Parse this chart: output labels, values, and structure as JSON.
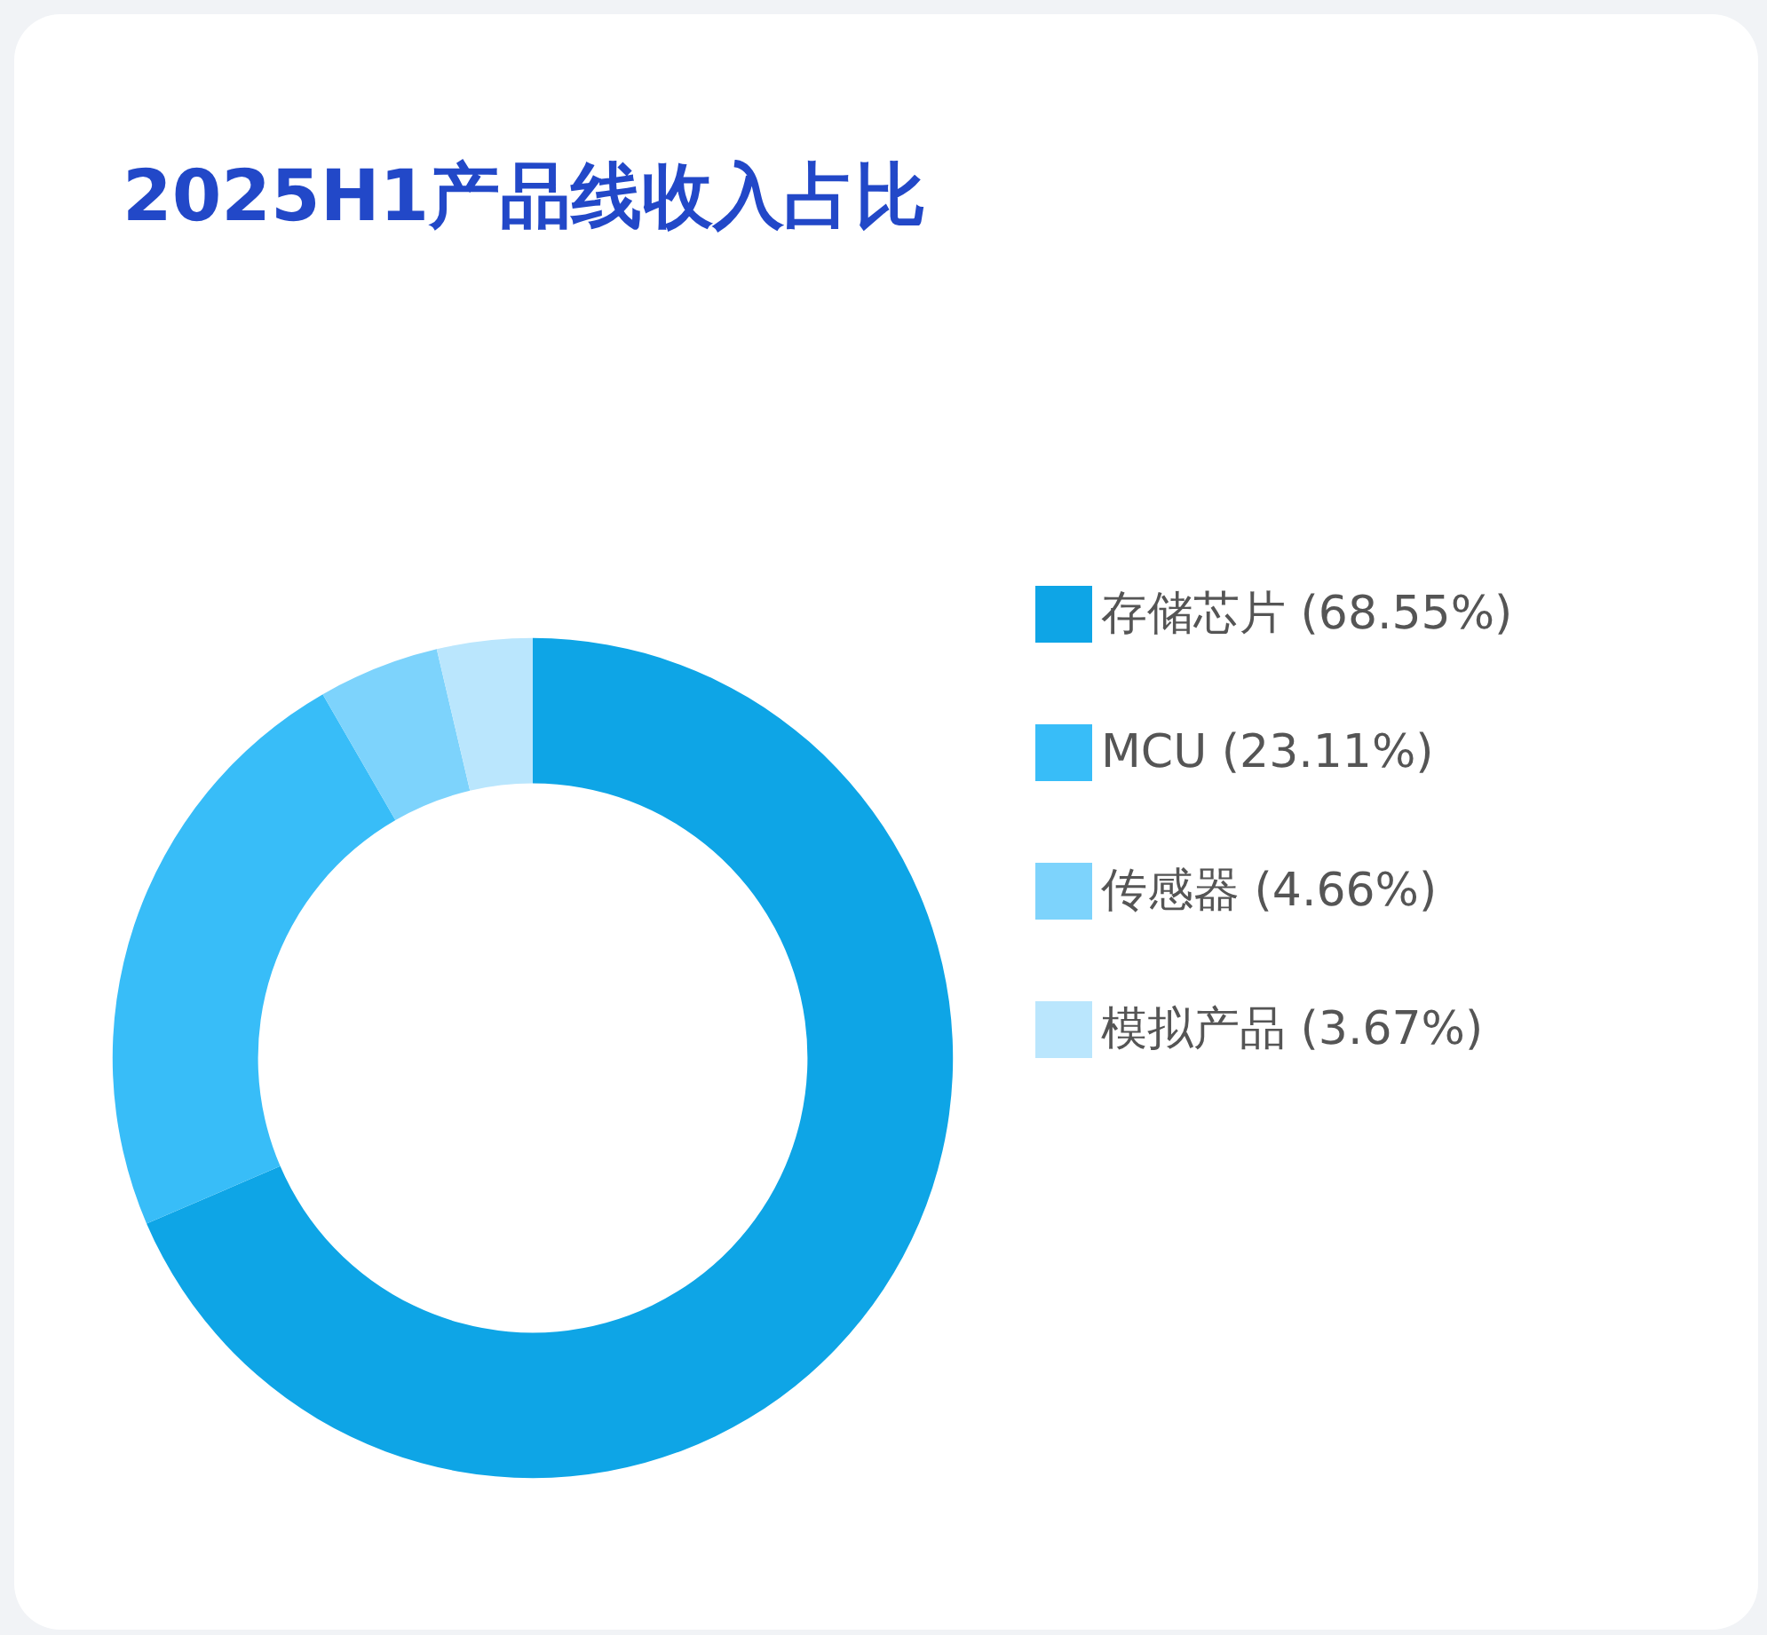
{
  "chart_data": {
    "type": "donut",
    "title": "2025H1产品线收入占比",
    "categories": [
      "存储芯片 (68.55%)",
      "MCU (23.11%)",
      "传感器 (4.66%)",
      "模拟产品 (3.67%)"
    ],
    "values": [
      68.55,
      23.11,
      4.66,
      3.67
    ],
    "colors": [
      "#0ea5e6",
      "#38bdf8",
      "#7dd3fc",
      "#bae6fd"
    ],
    "legend": "right"
  }
}
